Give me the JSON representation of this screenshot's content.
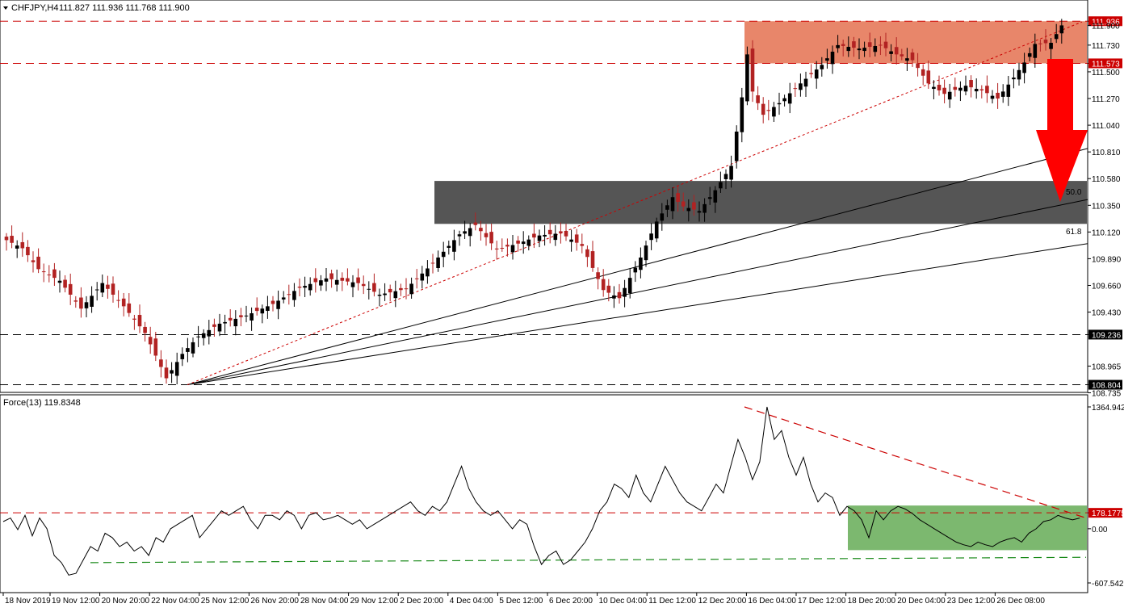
{
  "header": {
    "symbol": "CHFJPY,H4",
    "ohlc": "111.827 111.936 111.768 111.900",
    "indicator": "Force(13) 119.8348"
  },
  "colors": {
    "bull": "#000000",
    "bear": "#b22222",
    "resistance_zone": "#e8866a",
    "support_zone": "#555555",
    "green_zone": "#7cb86f",
    "arrow": "#ff0000",
    "dashed_red": "#cc0000",
    "dashed_green": "#1a8a1a"
  },
  "chart_data": [
    {
      "type": "candlestick",
      "title": "CHFJPY,H4",
      "y_range": [
        108.735,
        111.936
      ],
      "y_ticks": [
        "111.936",
        "111.900",
        "111.730",
        "111.573",
        "111.500",
        "111.270",
        "111.040",
        "110.810",
        "110.580",
        "110.350",
        "110.120",
        "109.890",
        "109.660",
        "109.430",
        "109.236",
        "108.965",
        "108.804",
        "108.735"
      ],
      "x_ticks": [
        "18 Nov 2019",
        "19 Nov 12:00",
        "20 Nov 20:00",
        "22 Nov 04:00",
        "25 Nov 12:00",
        "26 Nov 20:00",
        "28 Nov 04:00",
        "29 Nov 12:00",
        "2 Dec 20:00",
        "4 Dec 04:00",
        "5 Dec 12:00",
        "6 Dec 20:00",
        "10 Dec 04:00",
        "11 Dec 12:00",
        "12 Dec 20:00",
        "16 Dec 04:00",
        "17 Dec 12:00",
        "18 Dec 20:00",
        "20 Dec 04:00",
        "23 Dec 12:00",
        "26 Dec 08:00"
      ],
      "horizontal_levels": [
        {
          "value": 111.936,
          "label": "111.936",
          "style": "dashed red"
        },
        {
          "value": 111.573,
          "label": "111.573",
          "style": "dashed red"
        },
        {
          "value": 109.236,
          "label": "109.236",
          "style": "dashed black"
        },
        {
          "value": 108.804,
          "label": "108.804",
          "style": "dashed black"
        }
      ],
      "zones": [
        {
          "name": "resistance",
          "from": 111.573,
          "to": 111.936
        },
        {
          "name": "support",
          "from": 110.19,
          "to": 110.56
        }
      ],
      "fib_labels": [
        "50.0",
        "61.8"
      ],
      "close_anchors": [
        [
          0,
          110.05
        ],
        [
          3,
          109.98
        ],
        [
          6,
          109.8
        ],
        [
          10,
          109.7
        ],
        [
          14,
          109.46
        ],
        [
          18,
          109.68
        ],
        [
          22,
          109.48
        ],
        [
          26,
          109.25
        ],
        [
          30,
          108.86
        ],
        [
          33,
          109.07
        ],
        [
          36,
          109.22
        ],
        [
          40,
          109.33
        ],
        [
          45,
          109.4
        ],
        [
          50,
          109.5
        ],
        [
          55,
          109.64
        ],
        [
          60,
          109.72
        ],
        [
          66,
          109.68
        ],
        [
          70,
          109.58
        ],
        [
          75,
          109.63
        ],
        [
          80,
          109.85
        ],
        [
          85,
          110.1
        ],
        [
          88,
          110.18
        ],
        [
          92,
          109.97
        ],
        [
          96,
          110.02
        ],
        [
          100,
          110.09
        ],
        [
          104,
          110.11
        ],
        [
          108,
          110.0
        ],
        [
          112,
          109.62
        ],
        [
          115,
          109.55
        ],
        [
          119,
          109.9
        ],
        [
          122,
          110.21
        ],
        [
          125,
          110.42
        ],
        [
          127,
          110.34
        ],
        [
          130,
          110.3
        ],
        [
          133,
          110.48
        ],
        [
          136,
          110.69
        ],
        [
          138,
          111.28
        ],
        [
          139,
          111.65
        ],
        [
          140,
          111.33
        ],
        [
          142,
          111.13
        ],
        [
          145,
          111.23
        ],
        [
          149,
          111.4
        ],
        [
          153,
          111.56
        ],
        [
          156,
          111.73
        ],
        [
          160,
          111.7
        ],
        [
          164,
          111.73
        ],
        [
          167,
          111.65
        ],
        [
          170,
          111.6
        ],
        [
          173,
          111.4
        ],
        [
          176,
          111.31
        ],
        [
          180,
          111.38
        ],
        [
          183,
          111.34
        ],
        [
          186,
          111.27
        ],
        [
          189,
          111.45
        ],
        [
          191,
          111.58
        ],
        [
          193,
          111.74
        ],
        [
          196,
          111.75
        ],
        [
          198,
          111.9
        ]
      ]
    },
    {
      "type": "line",
      "title": "Force(13) 119.8348",
      "y_range": [
        -607.5426,
        1364.9423
      ],
      "y_ticks": [
        "1364.9423",
        "178.1775",
        "0.00",
        "-607.5426"
      ],
      "horizontal_levels": [
        {
          "value": 178.1775,
          "label": "178.1775",
          "style": "dashed red"
        }
      ],
      "series": [
        {
          "values": [
            80,
            120,
            -10,
            150,
            -80,
            120,
            0,
            -300,
            -380,
            -520,
            -500,
            -350,
            -200,
            -250,
            -50,
            -100,
            -200,
            -150,
            -250,
            -200,
            -300,
            -100,
            -150,
            0,
            50,
            100,
            150,
            -100,
            0,
            100,
            200,
            150,
            200,
            250,
            100,
            0,
            150,
            150,
            100,
            200,
            150,
            0,
            150,
            180,
            100,
            120,
            150,
            100,
            50,
            100,
            0,
            50,
            100,
            150,
            200,
            250,
            300,
            200,
            150,
            250,
            200,
            300,
            500,
            700,
            450,
            300,
            200,
            150,
            200,
            100,
            0,
            100,
            50,
            -200,
            -400,
            -300,
            -250,
            -400,
            -350,
            -250,
            -150,
            0,
            200,
            300,
            500,
            450,
            350,
            600,
            400,
            300,
            500,
            700,
            550,
            400,
            300,
            250,
            200,
            350,
            500,
            400,
            700,
            1000,
            800,
            550,
            750,
            1365,
            1000,
            1100,
            800,
            600,
            800,
            500,
            300,
            400,
            350,
            150,
            250,
            200,
            100,
            -100,
            200,
            100,
            200,
            250,
            220,
            170,
            100,
            50,
            0,
            -50,
            -100,
            -150,
            -180,
            -200,
            -150,
            -180,
            -200,
            -150,
            -120,
            -100,
            -150,
            -50,
            0,
            80,
            100,
            150,
            120,
            100,
            120
          ]
        }
      ],
      "trendlines": [
        {
          "name": "descending",
          "from": [
            -607,
            1364.9
          ],
          "to": [
            178,
            120
          ]
        },
        {
          "name": "ascending",
          "from": [
            -540,
            -380
          ],
          "to": [
            -400,
            -320
          ]
        }
      ]
    }
  ],
  "axis_labels": {
    "price": [
      "111.936",
      "111.900",
      "111.730",
      "111.573",
      "111.500",
      "111.270",
      "111.040",
      "110.810",
      "110.580",
      "110.350",
      "110.120",
      "109.890",
      "109.660",
      "109.430",
      "109.236",
      "108.965",
      "108.804",
      "108.735"
    ],
    "force": [
      "1364.9423",
      "178.1775",
      "0.00",
      "-607.5426"
    ]
  }
}
